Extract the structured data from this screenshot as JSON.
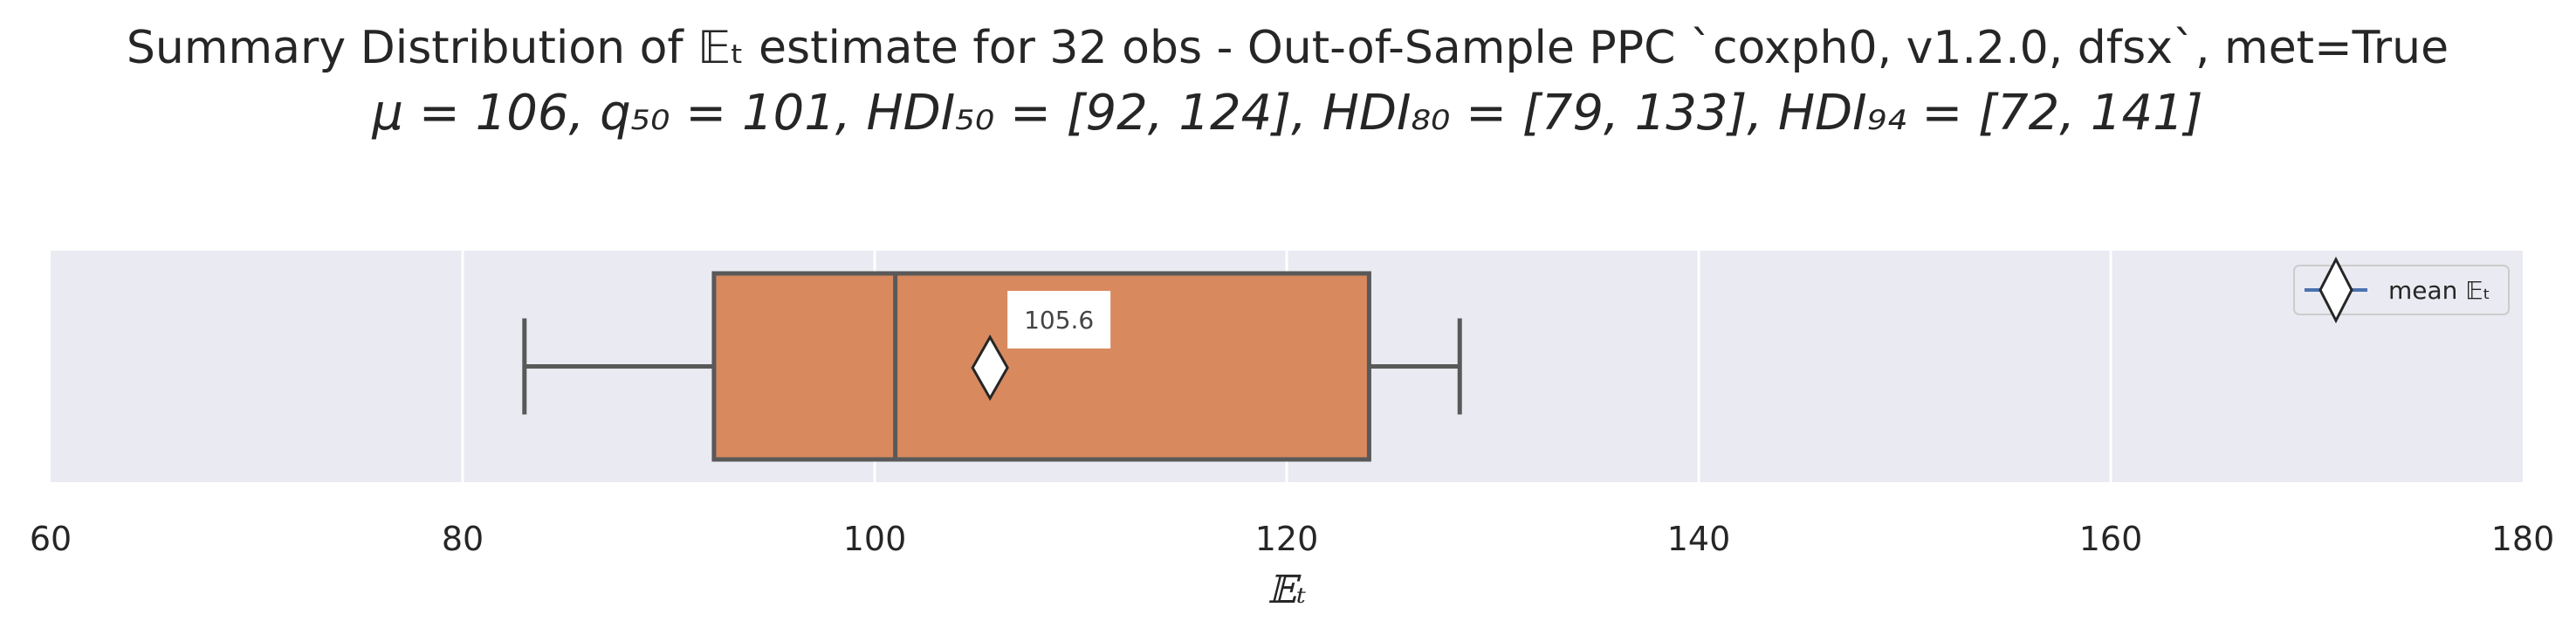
{
  "chart_data": {
    "type": "box",
    "title": "Summary Distribution of 𝔼ₜ estimate for 32 obs - Out-of-Sample PPC `coxph0, v1.2.0, dfsx`, met=True",
    "subtitle": "μ = 106, q₅₀ = 101, HDI₅₀ = [92, 124], HDI₈₀ = [79, 133], HDI₉₄ = [72, 141]",
    "xlabel": "𝔼ₜ",
    "xlim": [
      60,
      180
    ],
    "xticks": [
      60,
      80,
      100,
      120,
      140,
      160,
      180
    ],
    "grid": true,
    "legend_position": "top-right",
    "legend": [
      {
        "name": "mean 𝔼ₜ",
        "marker": "diamond"
      }
    ],
    "box": {
      "whisker_low": 83,
      "q1": 92.2,
      "median": 101,
      "q3": 124,
      "whisker_high": 128.4,
      "mean": 105.6,
      "mean_label": "105.6"
    },
    "colors": {
      "plot_bg": "#eaeaf2",
      "box_fill": "#d8895e",
      "box_edge": "#595959",
      "grid": "#ffffff",
      "legend_line": "#4c72b0"
    }
  }
}
